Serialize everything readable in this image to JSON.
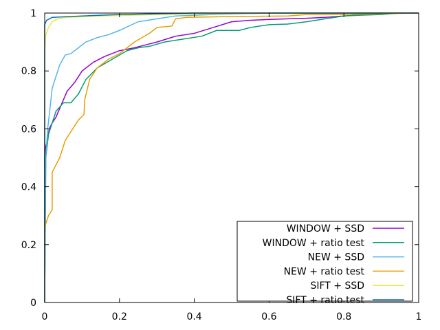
{
  "chart_data": {
    "type": "line",
    "title": "",
    "xlabel": "",
    "ylabel": "",
    "xlim": [
      0,
      1
    ],
    "ylim": [
      0,
      1
    ],
    "grid": false,
    "legend_placement": "bottom-right",
    "x_ticks": [
      {
        "value": 0,
        "label": "0"
      },
      {
        "value": 0.2,
        "label": "0.2"
      },
      {
        "value": 0.4,
        "label": "0.4"
      },
      {
        "value": 0.6,
        "label": "0.6"
      },
      {
        "value": 0.8,
        "label": "0.8"
      },
      {
        "value": 1,
        "label": "1"
      }
    ],
    "y_ticks": [
      {
        "value": 0,
        "label": "0"
      },
      {
        "value": 0.2,
        "label": "0.2"
      },
      {
        "value": 0.4,
        "label": "0.4"
      },
      {
        "value": 0.6,
        "label": "0.6"
      },
      {
        "value": 0.8,
        "label": "0.8"
      },
      {
        "value": 1,
        "label": "1"
      }
    ],
    "series": [
      {
        "name": "WINDOW + SSD",
        "color": "#9400d3",
        "points": [
          [
            0,
            0
          ],
          [
            0,
            0.5
          ],
          [
            0.003,
            0.54
          ],
          [
            0.008,
            0.56
          ],
          [
            0.012,
            0.6
          ],
          [
            0.02,
            0.62
          ],
          [
            0.03,
            0.64
          ],
          [
            0.04,
            0.67
          ],
          [
            0.05,
            0.7
          ],
          [
            0.06,
            0.73
          ],
          [
            0.08,
            0.76
          ],
          [
            0.1,
            0.8
          ],
          [
            0.13,
            0.83
          ],
          [
            0.16,
            0.85
          ],
          [
            0.2,
            0.87
          ],
          [
            0.24,
            0.88
          ],
          [
            0.27,
            0.89
          ],
          [
            0.3,
            0.9
          ],
          [
            0.35,
            0.92
          ],
          [
            0.4,
            0.93
          ],
          [
            0.45,
            0.95
          ],
          [
            0.5,
            0.97
          ],
          [
            0.55,
            0.975
          ],
          [
            0.6,
            0.978
          ],
          [
            0.65,
            0.98
          ],
          [
            0.7,
            0.982
          ],
          [
            0.75,
            0.985
          ],
          [
            0.8,
            0.99
          ],
          [
            0.85,
            0.994
          ],
          [
            0.9,
            0.997
          ],
          [
            0.93,
            1
          ],
          [
            1,
            1
          ]
        ]
      },
      {
        "name": "WINDOW + ratio test",
        "color": "#009e73",
        "points": [
          [
            0,
            0
          ],
          [
            0.003,
            0.5
          ],
          [
            0.01,
            0.58
          ],
          [
            0.02,
            0.62
          ],
          [
            0.03,
            0.66
          ],
          [
            0.05,
            0.69
          ],
          [
            0.07,
            0.69
          ],
          [
            0.09,
            0.72
          ],
          [
            0.11,
            0.77
          ],
          [
            0.14,
            0.81
          ],
          [
            0.18,
            0.84
          ],
          [
            0.22,
            0.87
          ],
          [
            0.25,
            0.88
          ],
          [
            0.28,
            0.885
          ],
          [
            0.32,
            0.9
          ],
          [
            0.37,
            0.91
          ],
          [
            0.42,
            0.92
          ],
          [
            0.46,
            0.94
          ],
          [
            0.52,
            0.94
          ],
          [
            0.55,
            0.95
          ],
          [
            0.6,
            0.96
          ],
          [
            0.65,
            0.962
          ],
          [
            0.7,
            0.97
          ],
          [
            0.75,
            0.98
          ],
          [
            0.8,
            0.99
          ],
          [
            0.85,
            0.993
          ],
          [
            0.9,
            0.995
          ],
          [
            0.95,
            1
          ],
          [
            1,
            1
          ]
        ]
      },
      {
        "name": "NEW + SSD",
        "color": "#56b4e9",
        "points": [
          [
            0,
            0
          ],
          [
            0.003,
            0.5
          ],
          [
            0.008,
            0.6
          ],
          [
            0.015,
            0.68
          ],
          [
            0.02,
            0.74
          ],
          [
            0.03,
            0.78
          ],
          [
            0.04,
            0.82
          ],
          [
            0.055,
            0.855
          ],
          [
            0.07,
            0.86
          ],
          [
            0.09,
            0.88
          ],
          [
            0.11,
            0.9
          ],
          [
            0.14,
            0.915
          ],
          [
            0.17,
            0.925
          ],
          [
            0.2,
            0.94
          ],
          [
            0.25,
            0.97
          ],
          [
            0.3,
            0.98
          ],
          [
            0.35,
            0.99
          ],
          [
            0.45,
            0.995
          ],
          [
            0.6,
            1
          ],
          [
            1,
            1
          ]
        ]
      },
      {
        "name": "NEW + ratio test",
        "color": "#e69f00",
        "points": [
          [
            0,
            0
          ],
          [
            0,
            0.26
          ],
          [
            0.01,
            0.3
          ],
          [
            0.02,
            0.32
          ],
          [
            0.02,
            0.45
          ],
          [
            0.04,
            0.5
          ],
          [
            0.055,
            0.56
          ],
          [
            0.07,
            0.59
          ],
          [
            0.09,
            0.63
          ],
          [
            0.105,
            0.65
          ],
          [
            0.107,
            0.7
          ],
          [
            0.12,
            0.77
          ],
          [
            0.14,
            0.81
          ],
          [
            0.17,
            0.84
          ],
          [
            0.2,
            0.86
          ],
          [
            0.24,
            0.9
          ],
          [
            0.28,
            0.93
          ],
          [
            0.3,
            0.95
          ],
          [
            0.34,
            0.955
          ],
          [
            0.35,
            0.98
          ],
          [
            0.38,
            0.985
          ],
          [
            0.5,
            0.988
          ],
          [
            0.65,
            0.99
          ],
          [
            0.7,
            0.995
          ],
          [
            0.8,
            0.995
          ],
          [
            0.9,
            0.998
          ],
          [
            1,
            1
          ]
        ]
      },
      {
        "name": "SIFT + SSD",
        "color": "#f0e442",
        "points": [
          [
            0,
            0
          ],
          [
            0,
            0.85
          ],
          [
            0.002,
            0.92
          ],
          [
            0.01,
            0.95
          ],
          [
            0.02,
            0.97
          ],
          [
            0.035,
            0.98
          ],
          [
            0.06,
            0.985
          ],
          [
            0.15,
            0.99
          ],
          [
            0.3,
            0.995
          ],
          [
            0.6,
            1
          ],
          [
            1,
            1
          ]
        ]
      },
      {
        "name": "SIFT + ratio test",
        "color": "#0072b2",
        "points": [
          [
            0,
            0
          ],
          [
            0,
            0.96
          ],
          [
            0.005,
            0.975
          ],
          [
            0.02,
            0.985
          ],
          [
            0.1,
            0.99
          ],
          [
            0.2,
            0.995
          ],
          [
            0.4,
            1
          ],
          [
            1,
            1
          ]
        ]
      }
    ]
  }
}
